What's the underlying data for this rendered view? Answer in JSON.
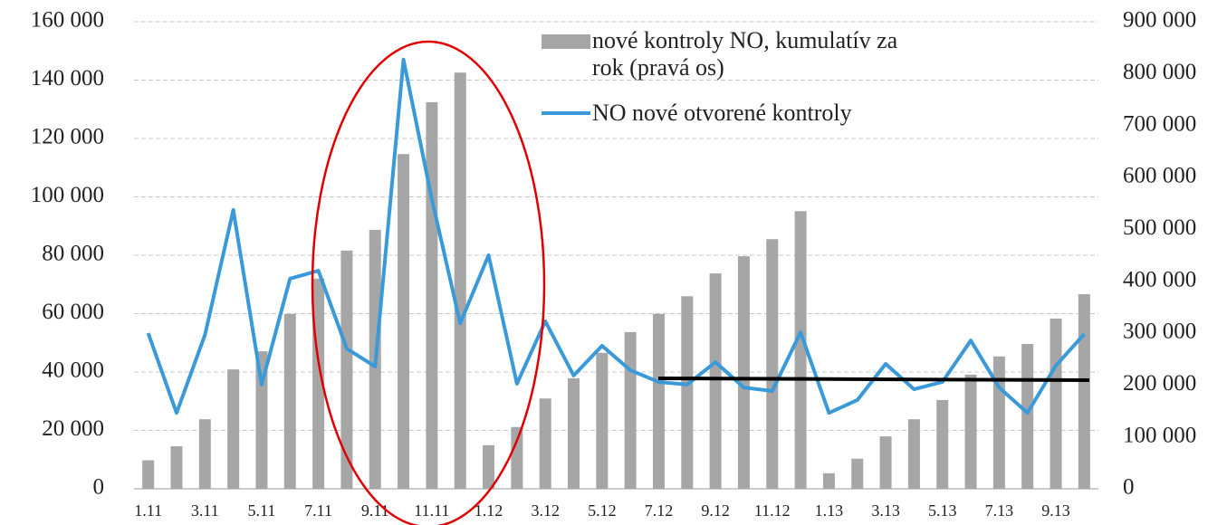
{
  "chart_data": {
    "type": "bar",
    "legend": "upper right",
    "grid": true,
    "categories": [
      "1.11",
      null,
      "3.11",
      null,
      "5.11",
      null,
      "7.11",
      null,
      "9.11",
      null,
      "11.11",
      null,
      "1.12",
      null,
      "3.12",
      null,
      "5.12",
      null,
      "7.12",
      null,
      "9.12",
      null,
      "11.12",
      null,
      "1.13",
      null,
      "3.13",
      null,
      "5.13",
      null,
      "7.13",
      null,
      "9.13",
      null
    ],
    "series": [
      {
        "name": "nové kontroly NO, kumulatív za rok (pravá os)",
        "type": "bar",
        "axis": "y2",
        "color": "#a6a6a6",
        "values": [
          55000,
          82000,
          134000,
          230000,
          265000,
          337000,
          405000,
          459000,
          499000,
          645000,
          745000,
          802000,
          84000,
          119000,
          174000,
          213000,
          262000,
          302000,
          337000,
          371000,
          415000,
          448000,
          481000,
          535000,
          30000,
          58000,
          101000,
          134000,
          171000,
          220000,
          255000,
          279000,
          328000,
          375000
        ]
      },
      {
        "name": "NO nové otvorené kontroly",
        "type": "line",
        "axis": "y",
        "color": "#3a9ad9",
        "values": [
          53300,
          26000,
          52700,
          95500,
          35700,
          72000,
          74700,
          48000,
          41900,
          147000,
          99200,
          56700,
          80000,
          36000,
          57400,
          38800,
          49000,
          40600,
          36600,
          35700,
          43400,
          34700,
          33500,
          53600,
          26000,
          30400,
          42800,
          34100,
          36600,
          50800,
          34700,
          26000,
          42200,
          53000
        ]
      }
    ],
    "ylim": [
      0,
      160000
    ],
    "yticks": [
      0,
      {
        "value": 20000,
        "label": "20 000"
      },
      {
        "value": 40000,
        "label": "40 000"
      },
      {
        "value": 60000,
        "label": "60 000"
      },
      {
        "value": 80000,
        "label": "80 000"
      },
      {
        "value": 100000,
        "label": "100 000"
      },
      {
        "value": 120000,
        "label": "120 000"
      },
      {
        "value": 140000,
        "label": "140 000"
      },
      {
        "value": 160000,
        "label": "160 000"
      }
    ],
    "y2lim": [
      0,
      900000
    ],
    "y2ticks": [
      0,
      {
        "value": 100000,
        "label": "100 000"
      },
      {
        "value": 200000,
        "label": "200 000"
      },
      {
        "value": 300000,
        "label": "300 000"
      },
      {
        "value": 400000,
        "label": "400 000"
      },
      {
        "value": 500000,
        "label": "500 000"
      },
      {
        "value": 600000,
        "label": "600 000"
      },
      {
        "value": 700000,
        "label": "700 000"
      },
      {
        "value": 800000,
        "label": "800 000"
      },
      {
        "value": 900000,
        "label": "900 000"
      }
    ]
  }
}
